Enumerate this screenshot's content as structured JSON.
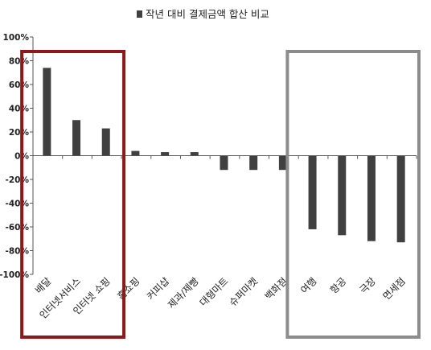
{
  "chart_data": {
    "type": "bar",
    "series": [
      {
        "name": "작년 대비 결제금액 합산 비교",
        "color": "#404040",
        "values": [
          74,
          30,
          23,
          4,
          3,
          3,
          -12,
          -12,
          -12,
          -62,
          -67,
          -72,
          -73
        ]
      }
    ],
    "categories": [
      "배달",
      "인터넷서비스",
      "인터넷 쇼핑",
      "홈쇼핑",
      "커피샵",
      "제과/제빵",
      "대형마트",
      "슈퍼마켓",
      "백화점",
      "여행",
      "항공",
      "극장",
      "면세점"
    ],
    "yticks": [
      "100%",
      "80%",
      "60%",
      "40%",
      "20%",
      "0%",
      "-20%",
      "-40%",
      "-60%",
      "-80%",
      "-100%"
    ],
    "ylim": [
      -100,
      100
    ],
    "legend_position": "top",
    "highlight_groups": [
      {
        "categories": [
          "배달",
          "인터넷서비스",
          "인터넷 쇼핑"
        ],
        "color": "#8B1A1A"
      },
      {
        "categories": [
          "여행",
          "항공",
          "극장",
          "면세점"
        ],
        "color": "#8C8C8C"
      }
    ]
  }
}
